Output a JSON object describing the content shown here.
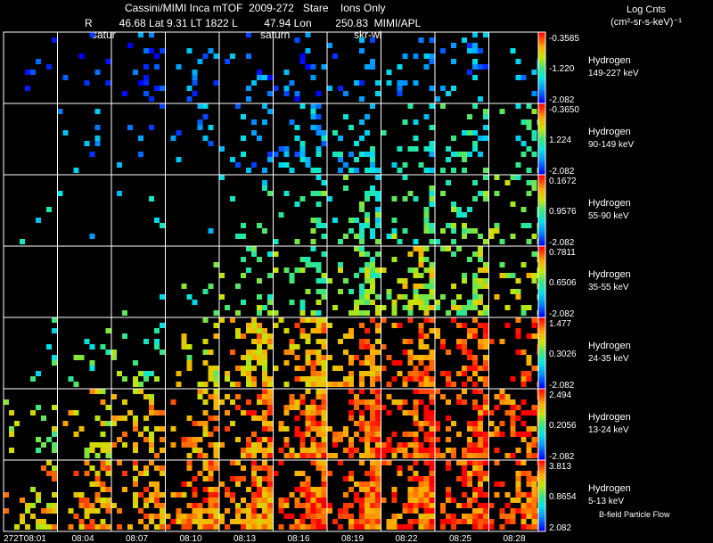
{
  "header": {
    "title": "Cassini/MIMI Inca mTOF  2009-272   Stare    Ions Only",
    "subtitle": "R         46.68 Lat 9.31 LT 1822 L         47.94 Lon        250.83  MIMI/APL",
    "units_line1": "Log Cnts",
    "units_line2": "(cm²-sr-s-keV)⁻¹"
  },
  "body_labels": [
    {
      "text": "satur"
    },
    {
      "text": "saturn"
    },
    {
      "text": "skr-wl"
    }
  ],
  "footer_note": "B-field Particle Flow",
  "colors": {
    "background": "#000000",
    "grid": "#ffffff"
  },
  "chart_data": {
    "type": "heatmap",
    "title": "Cassini/MIMI Inca mTOF 2009-272 Stare Ions Only",
    "species": "Hydrogen",
    "time_labels": [
      "272T08:01",
      "08:04",
      "08:07",
      "08:10",
      "08:13",
      "08:16",
      "08:19",
      "08:22",
      "08:25",
      "08:28"
    ],
    "colormap": "rainbow (blue low → red high)",
    "rows": [
      {
        "species": "Hydrogen",
        "energy": "149-227 keV",
        "cbar_max": "-0.3585",
        "cbar_mid": "-1.220",
        "cbar_min": "-2.082",
        "density": [
          0.04,
          0.07,
          0.1,
          0.1,
          0.12,
          0.13,
          0.15,
          0.14,
          0.12,
          0.1
        ],
        "level": [
          0.1,
          0.1,
          0.12,
          0.15,
          0.15,
          0.15,
          0.18,
          0.2,
          0.2,
          0.25
        ]
      },
      {
        "species": "Hydrogen",
        "energy": "90-149 keV",
        "cbar_max": "-0.3650",
        "cbar_mid": "1.224",
        "cbar_min": "-2.082",
        "density": [
          0.0,
          0.06,
          0.07,
          0.1,
          0.18,
          0.22,
          0.26,
          0.22,
          0.24,
          0.2
        ],
        "level": [
          0.15,
          0.18,
          0.2,
          0.22,
          0.22,
          0.25,
          0.3,
          0.35,
          0.4,
          0.45
        ]
      },
      {
        "species": "Hydrogen",
        "energy": "55-90 keV",
        "cbar_max": "0.1672",
        "cbar_mid": "0.9576",
        "cbar_min": "-2.082",
        "density": [
          0.02,
          0.03,
          0.03,
          0.04,
          0.08,
          0.15,
          0.22,
          0.22,
          0.2,
          0.18
        ],
        "level": [
          0.3,
          0.3,
          0.35,
          0.35,
          0.4,
          0.45,
          0.45,
          0.5,
          0.5,
          0.55
        ]
      },
      {
        "species": "Hydrogen",
        "energy": "35-55 keV",
        "cbar_max": "0.7811",
        "cbar_mid": "0.6506",
        "cbar_min": "-2.082",
        "density": [
          0.0,
          0.0,
          0.02,
          0.08,
          0.18,
          0.28,
          0.34,
          0.4,
          0.38,
          0.3
        ],
        "level": [
          0.35,
          0.35,
          0.4,
          0.45,
          0.5,
          0.5,
          0.55,
          0.65,
          0.6,
          0.65
        ]
      },
      {
        "species": "Hydrogen",
        "energy": "24-35 keV",
        "cbar_max": "1.477",
        "cbar_mid": "0.3026",
        "cbar_min": "-2.082",
        "density": [
          0.03,
          0.1,
          0.14,
          0.25,
          0.4,
          0.5,
          0.5,
          0.45,
          0.45,
          0.35
        ],
        "level": [
          0.4,
          0.45,
          0.5,
          0.65,
          0.75,
          0.8,
          0.85,
          0.9,
          0.9,
          0.9
        ]
      },
      {
        "species": "Hydrogen",
        "energy": "13-24 keV",
        "cbar_max": "2.494",
        "cbar_mid": "0.2056",
        "cbar_min": "-2.082",
        "density": [
          0.2,
          0.25,
          0.3,
          0.38,
          0.5,
          0.55,
          0.6,
          0.55,
          0.5,
          0.45
        ],
        "level": [
          0.6,
          0.7,
          0.75,
          0.8,
          0.85,
          0.85,
          0.9,
          0.9,
          0.9,
          0.9
        ]
      },
      {
        "species": "Hydrogen",
        "energy": "5-13 keV",
        "cbar_max": "3.813",
        "cbar_mid": "0.8654",
        "cbar_min": "2.082",
        "density": [
          0.3,
          0.4,
          0.45,
          0.5,
          0.65,
          0.7,
          0.7,
          0.65,
          0.6,
          0.55
        ],
        "level": [
          0.75,
          0.8,
          0.8,
          0.85,
          0.85,
          0.9,
          0.9,
          0.9,
          0.9,
          0.9
        ]
      }
    ]
  }
}
